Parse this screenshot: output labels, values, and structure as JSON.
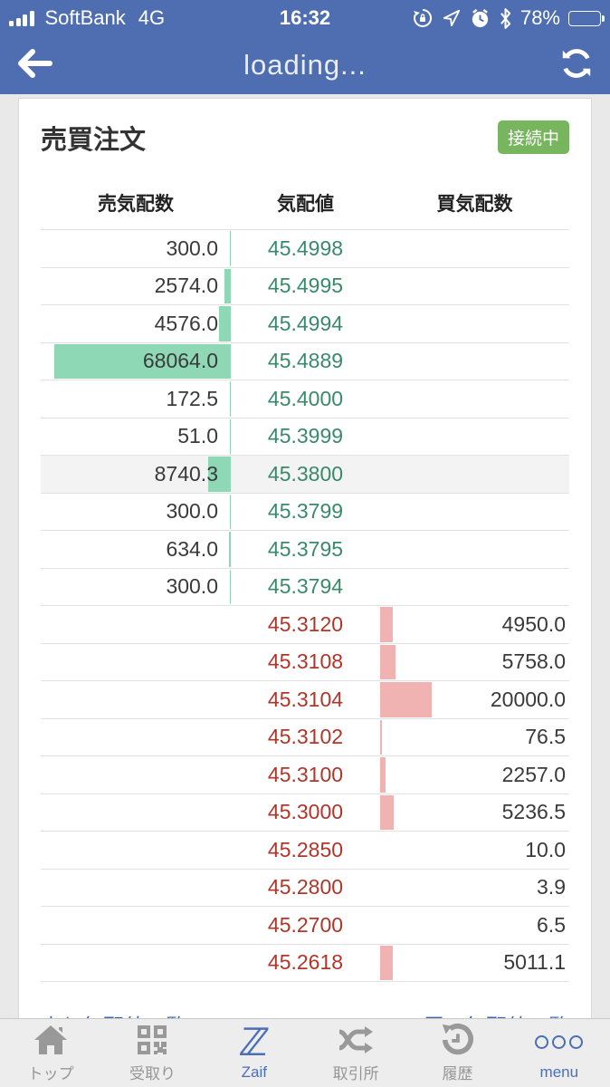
{
  "status_bar": {
    "carrier": "SoftBank",
    "network": "4G",
    "time": "16:32",
    "battery_text": "78%",
    "battery_level": 0.78,
    "icons": [
      "signal-icon",
      "rotation-lock-icon",
      "location-icon",
      "alarm-icon",
      "bluetooth-icon",
      "battery-icon"
    ]
  },
  "nav_bar": {
    "title": "loading...",
    "back_icon": "back-arrow-icon",
    "refresh_icon": "refresh-icon"
  },
  "page": {
    "title": "売買注文",
    "connection_badge": "接続中"
  },
  "order_book": {
    "columns": {
      "sell_qty": "売気配数",
      "price": "気配値",
      "buy_qty": "買気配数"
    },
    "asks": [
      {
        "qty": "300.0",
        "price": "45.4998"
      },
      {
        "qty": "2574.0",
        "price": "45.4995"
      },
      {
        "qty": "4576.0",
        "price": "45.4994"
      },
      {
        "qty": "68064.0",
        "price": "45.4889"
      },
      {
        "qty": "172.5",
        "price": "45.4000"
      },
      {
        "qty": "51.0",
        "price": "45.3999"
      },
      {
        "qty": "8740.3",
        "price": "45.3800",
        "highlight": true
      },
      {
        "qty": "300.0",
        "price": "45.3799"
      },
      {
        "qty": "634.0",
        "price": "45.3795"
      },
      {
        "qty": "300.0",
        "price": "45.3794"
      }
    ],
    "bids": [
      {
        "price": "45.3120",
        "qty": "4950.0"
      },
      {
        "price": "45.3108",
        "qty": "5758.0"
      },
      {
        "price": "45.3104",
        "qty": "20000.0"
      },
      {
        "price": "45.3102",
        "qty": "76.5"
      },
      {
        "price": "45.3100",
        "qty": "2257.0"
      },
      {
        "price": "45.3000",
        "qty": "5236.5"
      },
      {
        "price": "45.2850",
        "qty": "10.0"
      },
      {
        "price": "45.2800",
        "qty": "3.9"
      },
      {
        "price": "45.2700",
        "qty": "6.5"
      },
      {
        "price": "45.2618",
        "qty": "5011.1"
      }
    ]
  },
  "links": {
    "sell_list": "売り気配値一覧",
    "buy_list": "買い気配値一覧"
  },
  "tab_bar": {
    "items": [
      {
        "label": "トップ",
        "icon": "home-icon",
        "active": false
      },
      {
        "label": "受取り",
        "icon": "qr-icon",
        "active": false
      },
      {
        "label": "Zaif",
        "icon": "zaif-logo-icon",
        "active": true
      },
      {
        "label": "取引所",
        "icon": "shuffle-icon",
        "active": false
      },
      {
        "label": "履歴",
        "icon": "history-icon",
        "active": false
      },
      {
        "label": "menu",
        "icon": "menu-icon",
        "active": true
      }
    ]
  },
  "colors": {
    "bar_blue": "#4f6eb2",
    "badge_green": "#77b55e",
    "ask_price": "#39896b",
    "ask_bar": "#8fd8b6",
    "bid_price": "#b23529",
    "bid_bar": "#f0b3b1",
    "link_blue": "#3a67b0",
    "tab_active_blue": "#4a6fb8"
  }
}
